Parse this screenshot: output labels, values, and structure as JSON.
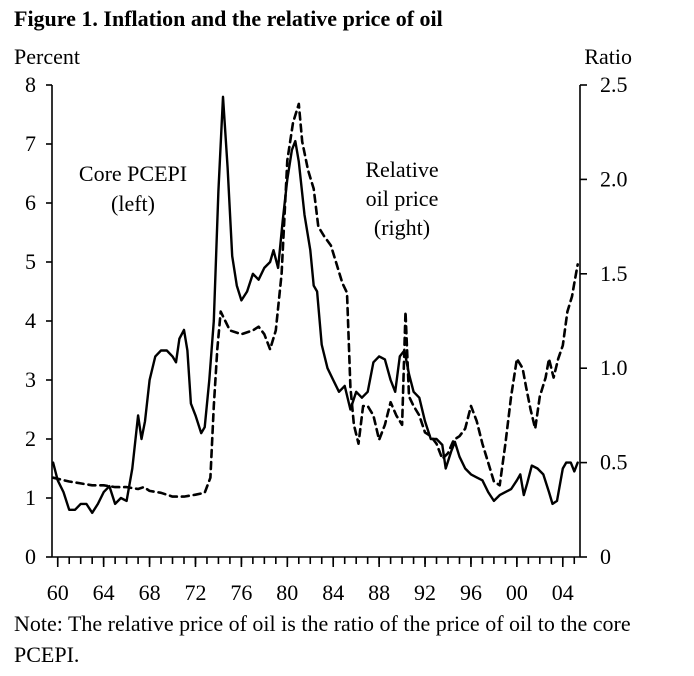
{
  "figure": {
    "title": "Figure 1. Inflation and the relative price of oil",
    "left_unit": "Percent",
    "right_unit": "Ratio",
    "note": "Note: The relative price of oil is the ratio of the price of oil to the core PCEPI."
  },
  "chart_data": {
    "type": "line",
    "title": "Figure 1. Inflation and the relative price of oil",
    "xlabel": "",
    "xlim": [
      1959.5,
      2005.5
    ],
    "x_tick_labels": [
      "60",
      "64",
      "68",
      "72",
      "76",
      "80",
      "84",
      "88",
      "92",
      "96",
      "00",
      "04"
    ],
    "x_tick_values": [
      1960,
      1964,
      1968,
      1972,
      1976,
      1980,
      1984,
      1988,
      1992,
      1996,
      2000,
      2004
    ],
    "left_axis": {
      "label": "Percent",
      "ylim": [
        0,
        8
      ],
      "ticks": [
        "0",
        "1",
        "2",
        "3",
        "4",
        "5",
        "6",
        "7",
        "8"
      ]
    },
    "right_axis": {
      "label": "Ratio",
      "ylim": [
        0,
        2.5
      ],
      "ticks": [
        "0",
        "0.5",
        "1.0",
        "1.5",
        "2.0",
        "2.5"
      ]
    },
    "grid": false,
    "legend": "annotations inside plot",
    "series": [
      {
        "name": "Core PCEPI (left)",
        "axis": "left",
        "style": "solid",
        "color": "#000000",
        "points": [
          [
            1959.6,
            1.6
          ],
          [
            1960.0,
            1.3
          ],
          [
            1960.5,
            1.1
          ],
          [
            1961.0,
            0.8
          ],
          [
            1961.5,
            0.8
          ],
          [
            1962.0,
            0.9
          ],
          [
            1962.5,
            0.9
          ],
          [
            1963.0,
            0.75
          ],
          [
            1963.5,
            0.9
          ],
          [
            1964.0,
            1.1
          ],
          [
            1964.5,
            1.2
          ],
          [
            1965.0,
            0.9
          ],
          [
            1965.5,
            1.0
          ],
          [
            1966.0,
            0.95
          ],
          [
            1966.5,
            1.5
          ],
          [
            1967.0,
            2.4
          ],
          [
            1967.3,
            2.0
          ],
          [
            1967.6,
            2.3
          ],
          [
            1968.0,
            3.0
          ],
          [
            1968.5,
            3.4
          ],
          [
            1969.0,
            3.5
          ],
          [
            1969.5,
            3.5
          ],
          [
            1970.0,
            3.4
          ],
          [
            1970.3,
            3.3
          ],
          [
            1970.6,
            3.7
          ],
          [
            1971.0,
            3.85
          ],
          [
            1971.3,
            3.5
          ],
          [
            1971.6,
            2.6
          ],
          [
            1972.0,
            2.4
          ],
          [
            1972.5,
            2.1
          ],
          [
            1972.8,
            2.2
          ],
          [
            1973.2,
            3.0
          ],
          [
            1973.6,
            4.0
          ],
          [
            1974.0,
            6.2
          ],
          [
            1974.4,
            7.8
          ],
          [
            1974.8,
            6.6
          ],
          [
            1975.2,
            5.1
          ],
          [
            1975.6,
            4.6
          ],
          [
            1976.0,
            4.35
          ],
          [
            1976.5,
            4.5
          ],
          [
            1977.0,
            4.8
          ],
          [
            1977.5,
            4.7
          ],
          [
            1978.0,
            4.9
          ],
          [
            1978.5,
            5.0
          ],
          [
            1978.8,
            5.2
          ],
          [
            1979.2,
            4.9
          ],
          [
            1979.6,
            5.7
          ],
          [
            1980.0,
            6.4
          ],
          [
            1980.4,
            6.9
          ],
          [
            1980.7,
            7.05
          ],
          [
            1981.0,
            6.7
          ],
          [
            1981.5,
            5.8
          ],
          [
            1982.0,
            5.2
          ],
          [
            1982.3,
            4.6
          ],
          [
            1982.6,
            4.5
          ],
          [
            1983.0,
            3.6
          ],
          [
            1983.5,
            3.2
          ],
          [
            1984.0,
            3.0
          ],
          [
            1984.5,
            2.8
          ],
          [
            1985.0,
            2.9
          ],
          [
            1985.5,
            2.5
          ],
          [
            1986.0,
            2.8
          ],
          [
            1986.5,
            2.7
          ],
          [
            1987.0,
            2.8
          ],
          [
            1987.5,
            3.3
          ],
          [
            1988.0,
            3.4
          ],
          [
            1988.5,
            3.35
          ],
          [
            1989.0,
            3.0
          ],
          [
            1989.4,
            2.8
          ],
          [
            1989.8,
            3.4
          ],
          [
            1990.2,
            3.5
          ],
          [
            1990.6,
            3.1
          ],
          [
            1991.0,
            2.8
          ],
          [
            1991.5,
            2.7
          ],
          [
            1992.0,
            2.3
          ],
          [
            1992.5,
            2.0
          ],
          [
            1993.0,
            2.0
          ],
          [
            1993.5,
            1.9
          ],
          [
            1993.8,
            1.5
          ],
          [
            1994.3,
            1.8
          ],
          [
            1994.6,
            1.95
          ],
          [
            1995.0,
            1.7
          ],
          [
            1995.5,
            1.5
          ],
          [
            1996.0,
            1.4
          ],
          [
            1996.5,
            1.35
          ],
          [
            1997.0,
            1.3
          ],
          [
            1997.5,
            1.1
          ],
          [
            1998.0,
            0.95
          ],
          [
            1998.5,
            1.05
          ],
          [
            1999.0,
            1.1
          ],
          [
            1999.5,
            1.15
          ],
          [
            2000.0,
            1.3
          ],
          [
            2000.3,
            1.4
          ],
          [
            2000.6,
            1.05
          ],
          [
            2000.9,
            1.25
          ],
          [
            2001.3,
            1.55
          ],
          [
            2001.8,
            1.5
          ],
          [
            2002.3,
            1.4
          ],
          [
            2002.8,
            1.1
          ],
          [
            2003.1,
            0.9
          ],
          [
            2003.5,
            0.95
          ],
          [
            2004.0,
            1.5
          ],
          [
            2004.3,
            1.6
          ],
          [
            2004.7,
            1.6
          ],
          [
            2005.0,
            1.45
          ],
          [
            2005.3,
            1.6
          ]
        ]
      },
      {
        "name": "Relative oil price (right)",
        "axis": "right",
        "style": "dashed",
        "color": "#000000",
        "points": [
          [
            1959.6,
            0.42
          ],
          [
            1961.0,
            0.4
          ],
          [
            1962.0,
            0.39
          ],
          [
            1963.0,
            0.38
          ],
          [
            1964.0,
            0.38
          ],
          [
            1965.0,
            0.37
          ],
          [
            1966.0,
            0.37
          ],
          [
            1967.0,
            0.36
          ],
          [
            1967.5,
            0.37
          ],
          [
            1968.0,
            0.35
          ],
          [
            1969.0,
            0.34
          ],
          [
            1970.0,
            0.32
          ],
          [
            1971.0,
            0.32
          ],
          [
            1972.0,
            0.33
          ],
          [
            1972.8,
            0.34
          ],
          [
            1973.3,
            0.42
          ],
          [
            1973.6,
            0.8
          ],
          [
            1973.9,
            1.1
          ],
          [
            1974.2,
            1.3
          ],
          [
            1974.6,
            1.25
          ],
          [
            1975.0,
            1.2
          ],
          [
            1976.0,
            1.18
          ],
          [
            1977.0,
            1.2
          ],
          [
            1977.5,
            1.22
          ],
          [
            1978.0,
            1.18
          ],
          [
            1978.5,
            1.1
          ],
          [
            1979.0,
            1.2
          ],
          [
            1979.5,
            1.5
          ],
          [
            1980.0,
            2.1
          ],
          [
            1980.5,
            2.3
          ],
          [
            1981.0,
            2.4
          ],
          [
            1981.3,
            2.2
          ],
          [
            1981.8,
            2.05
          ],
          [
            1982.3,
            1.95
          ],
          [
            1982.7,
            1.75
          ],
          [
            1983.2,
            1.7
          ],
          [
            1983.8,
            1.65
          ],
          [
            1984.3,
            1.55
          ],
          [
            1984.8,
            1.45
          ],
          [
            1985.2,
            1.4
          ],
          [
            1985.5,
            0.9
          ],
          [
            1985.8,
            0.7
          ],
          [
            1986.2,
            0.6
          ],
          [
            1986.6,
            0.8
          ],
          [
            1987.0,
            0.8
          ],
          [
            1987.5,
            0.75
          ],
          [
            1988.0,
            0.62
          ],
          [
            1988.5,
            0.7
          ],
          [
            1989.0,
            0.82
          ],
          [
            1989.5,
            0.75
          ],
          [
            1990.0,
            0.7
          ],
          [
            1990.3,
            1.3
          ],
          [
            1990.6,
            0.85
          ],
          [
            1991.0,
            0.8
          ],
          [
            1991.5,
            0.75
          ],
          [
            1992.0,
            0.66
          ],
          [
            1992.5,
            0.64
          ],
          [
            1993.0,
            0.6
          ],
          [
            1993.5,
            0.52
          ],
          [
            1994.0,
            0.55
          ],
          [
            1994.5,
            0.62
          ],
          [
            1995.0,
            0.64
          ],
          [
            1995.5,
            0.68
          ],
          [
            1996.0,
            0.8
          ],
          [
            1996.5,
            0.72
          ],
          [
            1997.0,
            0.6
          ],
          [
            1997.5,
            0.5
          ],
          [
            1998.0,
            0.4
          ],
          [
            1998.5,
            0.38
          ],
          [
            1999.0,
            0.6
          ],
          [
            1999.5,
            0.85
          ],
          [
            2000.0,
            1.05
          ],
          [
            2000.5,
            1.0
          ],
          [
            2000.8,
            0.9
          ],
          [
            2001.2,
            0.78
          ],
          [
            2001.6,
            0.68
          ],
          [
            2002.0,
            0.85
          ],
          [
            2002.5,
            0.95
          ],
          [
            2002.8,
            1.05
          ],
          [
            2003.2,
            0.95
          ],
          [
            2003.6,
            1.05
          ],
          [
            2004.0,
            1.12
          ],
          [
            2004.4,
            1.3
          ],
          [
            2004.8,
            1.38
          ],
          [
            2005.0,
            1.45
          ],
          [
            2005.3,
            1.55
          ]
        ]
      }
    ],
    "annotations": [
      {
        "lines": [
          "Core PCEPI",
          "(left)"
        ]
      },
      {
        "lines": [
          "Relative",
          "oil price",
          "(right)"
        ]
      }
    ]
  }
}
